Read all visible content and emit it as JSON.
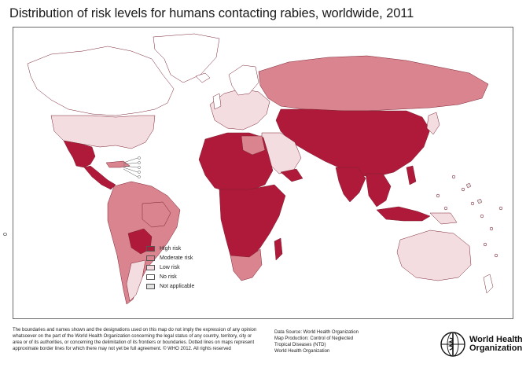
{
  "title": "Distribution of risk levels for humans contacting rabies, worldwide, 2011",
  "scale_label": "0",
  "colors": {
    "high": "#b01a3a",
    "moderate": "#d9848e",
    "low": "#f4dde0",
    "none": "#ffffff",
    "na": "#e2e2e2",
    "border": "#7a2232",
    "ocean": "#ffffff"
  },
  "legend": [
    {
      "key": "high",
      "label": "High risk"
    },
    {
      "key": "moderate",
      "label": "Moderate risk"
    },
    {
      "key": "low",
      "label": "Low risk"
    },
    {
      "key": "none",
      "label": "No risk"
    },
    {
      "key": "na",
      "label": "Not applicable"
    }
  ],
  "disclaimer": "The boundaries and names shown and the designations used on this map do not imply the expression of any opinion whatsoever on the part of the World Health Organization concerning the legal status of any country, territory, city or area or of its authorities, or concerning the delimitation of its frontiers or boundaries. Dotted lines on maps represent approximate border lines for which there may not yet be full agreement. © WHO 2012. All rights reserved",
  "credits": {
    "source": "Data Source: World Health Organization",
    "production": "Map Production: Control of Neglected",
    "production2": "Tropical Diseases (NTD)",
    "org": "World Health Organization"
  },
  "logo": {
    "line1": "World Health",
    "line2": "Organization",
    "icon": "who-emblem-icon"
  }
}
